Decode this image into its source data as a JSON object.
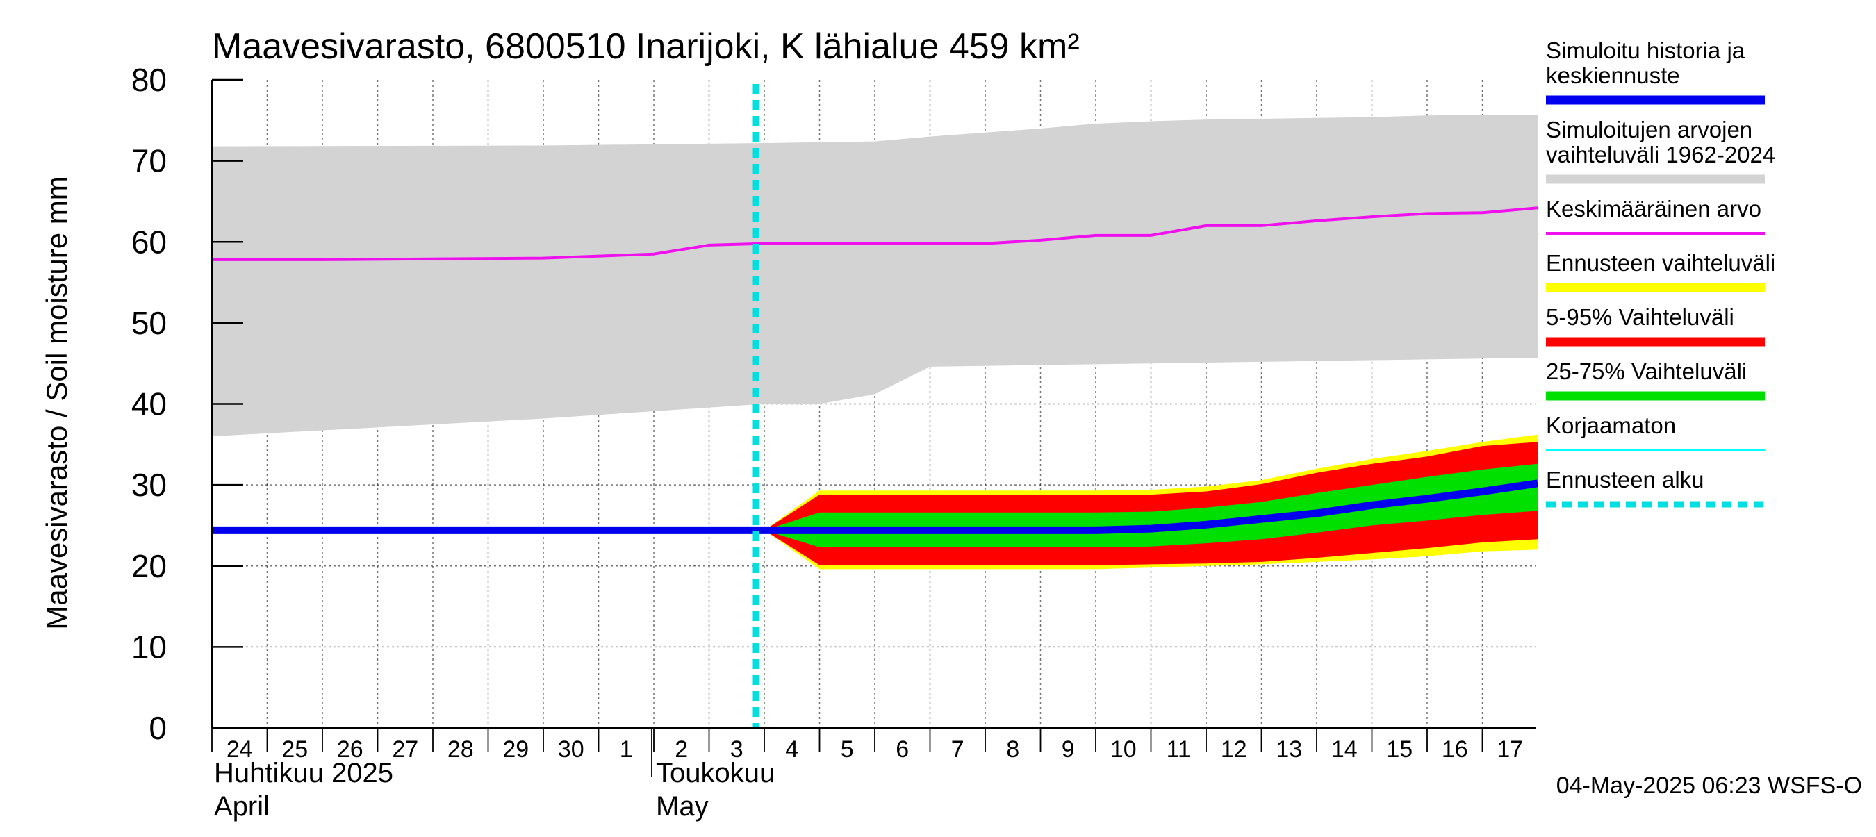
{
  "chart_data": {
    "type": "area",
    "title": "Maavesivarasto, 6800510 Inarijoki, K lähialue 459 km²",
    "ylabel": "Maavesivarasto / Soil moisture   mm",
    "ylim": [
      0,
      80
    ],
    "yticks": [
      "0",
      "10",
      "20",
      "30",
      "40",
      "50",
      "60",
      "70",
      "80"
    ],
    "grid": true,
    "legend_position": "right",
    "x_start": "2025-04-24",
    "x_end": "2025-05-17",
    "day_labels": [
      "24",
      "25",
      "26",
      "27",
      "28",
      "29",
      "30",
      "1",
      "2",
      "3",
      "4",
      "5",
      "6",
      "7",
      "8",
      "9",
      "10",
      "11",
      "12",
      "13",
      "14",
      "15",
      "16",
      "17"
    ],
    "month_labels": [
      {
        "date": "2025-04-24",
        "line1": "Huhtikuu  2025",
        "line2": "April"
      },
      {
        "date": "2025-05-02",
        "line1": "Toukokuu",
        "line2": "May"
      }
    ],
    "forecast_start": "2025-05-04",
    "series": [
      {
        "name": "Simuloitujen arvojen vaihteluväli 1962-2024",
        "kind": "band",
        "color": "#d3d3d3",
        "x": [
          "2025-04-24",
          "2025-04-30",
          "2025-05-04",
          "2025-05-05",
          "2025-05-06",
          "2025-05-07",
          "2025-05-08",
          "2025-05-09",
          "2025-05-10",
          "2025-05-11",
          "2025-05-12",
          "2025-05-13",
          "2025-05-14",
          "2025-05-15",
          "2025-05-16",
          "2025-05-17",
          "2025-05-18"
        ],
        "lower": [
          36,
          38.2,
          40,
          40,
          41.2,
          44.6,
          44.7,
          44.8,
          44.9,
          45,
          45.1,
          45.2,
          45.3,
          45.4,
          45.5,
          45.6,
          45.7
        ],
        "upper": [
          71.8,
          71.9,
          72.2,
          72.3,
          72.4,
          73,
          73.5,
          74,
          74.6,
          74.9,
          75.1,
          75.2,
          75.3,
          75.4,
          75.6,
          75.7,
          75.7
        ]
      },
      {
        "name": "Keskimääräinen arvo",
        "kind": "line",
        "color": "#ee11ee",
        "x": [
          "2025-04-24",
          "2025-04-26",
          "2025-04-30",
          "2025-05-02",
          "2025-05-03",
          "2025-05-04",
          "2025-05-08",
          "2025-05-09",
          "2025-05-10",
          "2025-05-11",
          "2025-05-12",
          "2025-05-13",
          "2025-05-14",
          "2025-05-15",
          "2025-05-16",
          "2025-05-17",
          "2025-05-18"
        ],
        "y": [
          57.8,
          57.8,
          58,
          58.5,
          59.6,
          59.8,
          59.8,
          60.2,
          60.8,
          60.8,
          62,
          62,
          62.6,
          63.1,
          63.5,
          63.6,
          64.2
        ]
      },
      {
        "name": "Ennusteen vaihteluväli",
        "kind": "band",
        "color": "#ffff00",
        "x": [
          "2025-05-04",
          "2025-05-05",
          "2025-05-06",
          "2025-05-07",
          "2025-05-08",
          "2025-05-09",
          "2025-05-10",
          "2025-05-11",
          "2025-05-12",
          "2025-05-13",
          "2025-05-14",
          "2025-05-15",
          "2025-05-16",
          "2025-05-17",
          "2025-05-18"
        ],
        "lower": [
          24.4,
          19.6,
          19.6,
          19.6,
          19.6,
          19.6,
          19.6,
          19.8,
          20,
          20.2,
          20.5,
          20.8,
          21.2,
          21.8,
          22
        ],
        "upper": [
          24.4,
          29.3,
          29.3,
          29.3,
          29.3,
          29.3,
          29.3,
          29.4,
          29.8,
          30.6,
          32,
          33.2,
          34.2,
          35.3,
          36.2
        ]
      },
      {
        "name": "5-95% Vaihteluväli",
        "kind": "band",
        "color": "#ff0000",
        "x": [
          "2025-05-04",
          "2025-05-05",
          "2025-05-06",
          "2025-05-07",
          "2025-05-08",
          "2025-05-09",
          "2025-05-10",
          "2025-05-11",
          "2025-05-12",
          "2025-05-13",
          "2025-05-14",
          "2025-05-15",
          "2025-05-16",
          "2025-05-17",
          "2025-05-18"
        ],
        "lower": [
          24.4,
          20.1,
          20.1,
          20.1,
          20.1,
          20.1,
          20.1,
          20.2,
          20.3,
          20.5,
          21,
          21.6,
          22.2,
          22.9,
          23.3
        ],
        "upper": [
          24.4,
          28.8,
          28.8,
          28.8,
          28.8,
          28.8,
          28.8,
          28.8,
          29.2,
          30.1,
          31.5,
          32.6,
          33.5,
          34.8,
          35.3
        ]
      },
      {
        "name": "25-75% Vaihteluväli",
        "kind": "band",
        "color": "#00e000",
        "x": [
          "2025-05-04",
          "2025-05-05",
          "2025-05-06",
          "2025-05-07",
          "2025-05-08",
          "2025-05-09",
          "2025-05-10",
          "2025-05-11",
          "2025-05-12",
          "2025-05-13",
          "2025-05-14",
          "2025-05-15",
          "2025-05-16",
          "2025-05-17",
          "2025-05-18"
        ],
        "lower": [
          24.4,
          22.3,
          22.3,
          22.3,
          22.3,
          22.3,
          22.3,
          22.4,
          22.8,
          23.3,
          24.1,
          25,
          25.6,
          26.3,
          26.8
        ],
        "upper": [
          24.4,
          26.6,
          26.6,
          26.6,
          26.6,
          26.6,
          26.6,
          26.7,
          27.2,
          27.9,
          29,
          30,
          31,
          31.9,
          32.6
        ]
      },
      {
        "name": "Korjaamaton",
        "kind": "line",
        "color": "#00ffff",
        "x": [
          "2025-04-24",
          "2025-05-02"
        ],
        "y": [
          24.4,
          24.4
        ]
      },
      {
        "name": "Simuloitu historia ja keskiennuste",
        "kind": "line",
        "color": "#0000ee",
        "x": [
          "2025-04-24",
          "2025-05-04",
          "2025-05-05",
          "2025-05-06",
          "2025-05-07",
          "2025-05-08",
          "2025-05-09",
          "2025-05-10",
          "2025-05-11",
          "2025-05-12",
          "2025-05-13",
          "2025-05-14",
          "2025-05-15",
          "2025-05-16",
          "2025-05-17",
          "2025-05-18"
        ],
        "y": [
          24.4,
          24.4,
          24.4,
          24.4,
          24.4,
          24.4,
          24.4,
          24.4,
          24.6,
          25.1,
          25.8,
          26.5,
          27.5,
          28.3,
          29.2,
          30.2
        ]
      }
    ],
    "legend": [
      {
        "lines": [
          "Simuloitu historia ja",
          "keskiennuste"
        ],
        "color": "#0000ee",
        "style": "thick"
      },
      {
        "lines": [
          "Simuloitujen arvojen",
          "vaihteluväli 1962-2024"
        ],
        "color": "#d3d3d3",
        "style": "thick"
      },
      {
        "lines": [
          "Keskimääräinen arvo"
        ],
        "color": "#ee11ee",
        "style": "thin"
      },
      {
        "lines": [
          "Ennusteen vaihteluväli"
        ],
        "color": "#ffff00",
        "style": "thick"
      },
      {
        "lines": [
          "5-95% Vaihteluväli"
        ],
        "color": "#ff0000",
        "style": "thick"
      },
      {
        "lines": [
          "25-75% Vaihteluväli"
        ],
        "color": "#00e000",
        "style": "thick"
      },
      {
        "lines": [
          "Korjaamaton"
        ],
        "color": "#00ffff",
        "style": "thin"
      },
      {
        "lines": [
          "Ennusteen alku"
        ],
        "color": "#00e0e0",
        "style": "dashed"
      }
    ],
    "footer": "04-May-2025 06:23 WSFS-O"
  }
}
